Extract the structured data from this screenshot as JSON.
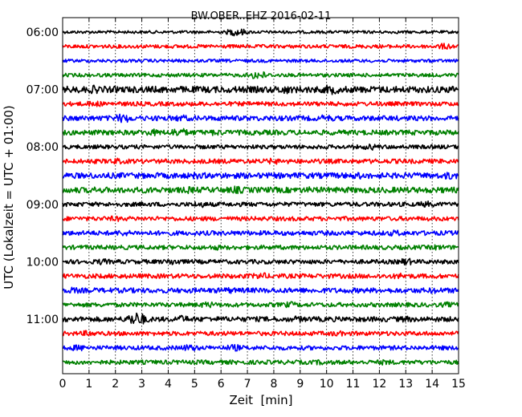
{
  "chart_data": {
    "type": "line",
    "title": "BW.OBER..EHZ 2016-02-11",
    "xlabel": "Zeit  [min]",
    "ylabel": "UTC (Lokalzeit = UTC + 01:00)",
    "xlim": [
      0,
      15
    ],
    "x_ticks": [
      "0",
      "1",
      "2",
      "3",
      "4",
      "5",
      "6",
      "7",
      "8",
      "9",
      "10",
      "11",
      "12",
      "13",
      "14",
      "15"
    ],
    "y_ticks": [
      "06:00",
      "07:00",
      "08:00",
      "09:00",
      "10:00",
      "11:00"
    ],
    "grid": true,
    "trace_interval_min": 15,
    "trace_start": "06:00",
    "trace_end": "11:45",
    "trace_colors": [
      "#000000",
      "#ff0000",
      "#0000ff",
      "#008000"
    ],
    "traces": [
      {
        "start": "06:00",
        "amp": 0.2,
        "events": [
          [
            6.6,
            0.55
          ]
        ]
      },
      {
        "start": "06:15",
        "amp": 0.25,
        "events": [
          [
            14.5,
            0.45
          ]
        ]
      },
      {
        "start": "06:30",
        "amp": 0.22,
        "events": []
      },
      {
        "start": "06:45",
        "amp": 0.25,
        "events": [
          [
            7.4,
            0.6
          ]
        ]
      },
      {
        "start": "07:00",
        "amp": 0.45,
        "events": [
          [
            1.2,
            0.6
          ],
          [
            8.4,
            0.65
          ],
          [
            10.2,
            0.7
          ],
          [
            14.9,
            0.55
          ]
        ]
      },
      {
        "start": "07:15",
        "amp": 0.3,
        "events": [
          [
            1.2,
            0.45
          ]
        ]
      },
      {
        "start": "07:30",
        "amp": 0.35,
        "events": [
          [
            2.3,
            0.65
          ],
          [
            4.5,
            0.5
          ],
          [
            10.0,
            0.5
          ]
        ]
      },
      {
        "start": "07:45",
        "amp": 0.35,
        "events": [
          [
            3.4,
            0.5
          ],
          [
            4.4,
            0.65
          ],
          [
            5.8,
            0.45
          ]
        ]
      },
      {
        "start": "08:00",
        "amp": 0.28,
        "events": [
          [
            11.7,
            0.45
          ]
        ]
      },
      {
        "start": "08:15",
        "amp": 0.32,
        "events": [
          [
            2.0,
            0.45
          ],
          [
            8.0,
            0.45
          ]
        ]
      },
      {
        "start": "08:30",
        "amp": 0.4,
        "events": [
          [
            5.0,
            0.5
          ],
          [
            11.2,
            0.5
          ],
          [
            14.7,
            0.55
          ]
        ]
      },
      {
        "start": "08:45",
        "amp": 0.4,
        "events": [
          [
            1.2,
            0.45
          ],
          [
            3.2,
            0.45
          ],
          [
            4.8,
            0.5
          ],
          [
            6.6,
            0.55
          ],
          [
            9.4,
            0.45
          ]
        ]
      },
      {
        "start": "09:00",
        "amp": 0.3,
        "events": [
          [
            5.2,
            0.45
          ],
          [
            13.8,
            0.45
          ]
        ]
      },
      {
        "start": "09:15",
        "amp": 0.3,
        "events": [
          [
            2.0,
            0.4
          ]
        ]
      },
      {
        "start": "09:30",
        "amp": 0.32,
        "events": [
          [
            2.3,
            0.45
          ],
          [
            12.6,
            0.45
          ]
        ]
      },
      {
        "start": "09:45",
        "amp": 0.3,
        "events": [
          [
            5.8,
            0.4
          ],
          [
            14.2,
            0.4
          ]
        ]
      },
      {
        "start": "10:00",
        "amp": 0.3,
        "events": [
          [
            1.5,
            0.45
          ],
          [
            4.2,
            0.5
          ],
          [
            13.0,
            0.5
          ]
        ]
      },
      {
        "start": "10:15",
        "amp": 0.32,
        "events": [
          [
            7.5,
            0.5
          ],
          [
            12.8,
            0.45
          ]
        ]
      },
      {
        "start": "10:30",
        "amp": 0.35,
        "events": [
          [
            0.4,
            0.45
          ],
          [
            6.3,
            0.45
          ],
          [
            14.1,
            0.45
          ]
        ]
      },
      {
        "start": "10:45",
        "amp": 0.3,
        "events": [
          [
            5.5,
            0.45
          ],
          [
            8.6,
            0.45
          ],
          [
            14.6,
            0.4
          ]
        ]
      },
      {
        "start": "11:00",
        "amp": 0.35,
        "events": [
          [
            2.8,
            0.95
          ],
          [
            4.5,
            0.55
          ],
          [
            8.9,
            0.45
          ],
          [
            13.0,
            0.45
          ]
        ]
      },
      {
        "start": "11:15",
        "amp": 0.3,
        "events": [
          [
            1.0,
            0.45
          ],
          [
            10.4,
            0.4
          ]
        ]
      },
      {
        "start": "11:30",
        "amp": 0.3,
        "events": [
          [
            0.6,
            0.45
          ],
          [
            4.8,
            0.5
          ],
          [
            6.5,
            0.5
          ]
        ]
      },
      {
        "start": "11:45",
        "amp": 0.3,
        "events": [
          [
            9.8,
            0.4
          ],
          [
            12.2,
            0.4
          ]
        ]
      }
    ]
  }
}
